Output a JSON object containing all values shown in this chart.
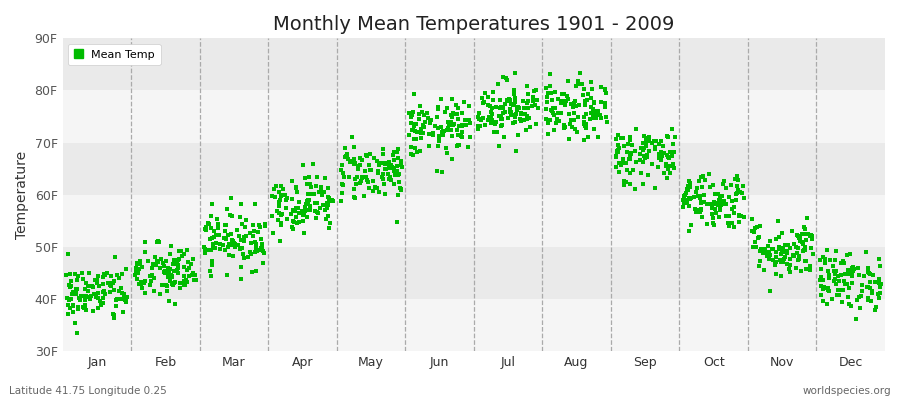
{
  "title": "Monthly Mean Temperatures 1901 - 2009",
  "ylabel": "Temperature",
  "ylim": [
    30,
    90
  ],
  "yticks": [
    30,
    40,
    50,
    60,
    70,
    80,
    90
  ],
  "ytick_labels": [
    "30F",
    "40F",
    "50F",
    "60F",
    "70F",
    "80F",
    "90F"
  ],
  "months": [
    "Jan",
    "Feb",
    "Mar",
    "Apr",
    "May",
    "Jun",
    "Jul",
    "Aug",
    "Sep",
    "Oct",
    "Nov",
    "Dec"
  ],
  "month_means_F": [
    41.0,
    45.0,
    51.5,
    58.5,
    64.5,
    72.5,
    76.5,
    76.0,
    67.5,
    59.0,
    49.5,
    43.5
  ],
  "month_stds_F": [
    2.8,
    2.8,
    2.8,
    2.8,
    2.8,
    2.8,
    2.8,
    2.8,
    2.8,
    2.8,
    2.8,
    2.8
  ],
  "n_years": 109,
  "scatter_color": "#00bb00",
  "background_color": "#ffffff",
  "plot_bg_color": "#f5f5f5",
  "band_color_light": "#f5f5f5",
  "band_color_dark": "#eaeaea",
  "legend_label": "Mean Temp",
  "bottom_left_text": "Latitude 41.75 Longitude 0.25",
  "bottom_right_text": "worldspecies.org",
  "marker": "s",
  "marker_size": 3,
  "grid_color": "#aaaaaa",
  "grid_style": "--",
  "grid_linewidth": 0.9
}
